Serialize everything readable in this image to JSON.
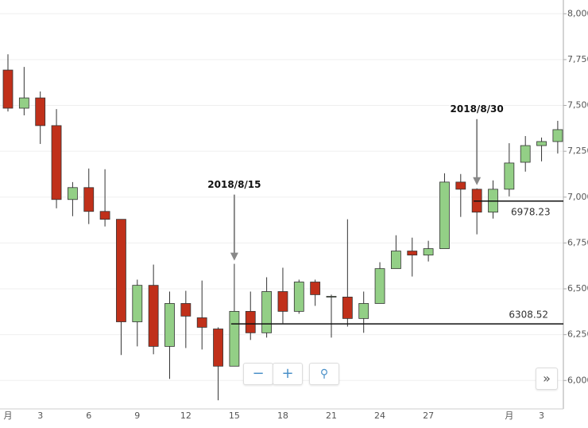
{
  "chart_data": {
    "type": "candlestick",
    "categories": [
      "月",
      null,
      "3",
      null,
      null,
      "6",
      null,
      null,
      "9",
      null,
      null,
      "12",
      null,
      null,
      "15",
      null,
      null,
      "18",
      null,
      null,
      "21",
      null,
      null,
      "24",
      null,
      null,
      "27",
      null,
      null,
      null,
      null,
      "月",
      null,
      "3",
      null
    ],
    "open": [
      7693,
      7485,
      7541,
      7390,
      6987,
      7052,
      6922,
      6879,
      6320,
      6519,
      6186,
      6420,
      6342,
      6281,
      6078,
      6377,
      6260,
      6485,
      6377,
      6537,
      6455,
      6455,
      6338,
      6420,
      6610,
      6706,
      6684,
      6719,
      7082,
      7043,
      6918,
      7043,
      7190,
      7281,
      7303
    ],
    "high": [
      7779,
      7710,
      7576,
      7480,
      7082,
      7156,
      7152,
      6879,
      6550,
      6632,
      6485,
      6489,
      6545,
      6290,
      6636,
      6485,
      6563,
      6615,
      6550,
      6550,
      6468,
      6879,
      6485,
      6645,
      6792,
      6779,
      6762,
      7130,
      7126,
      7048,
      7091,
      7294,
      7333,
      7325,
      7416
    ],
    "low": [
      7467,
      7446,
      7290,
      6939,
      6896,
      6853,
      6840,
      6139,
      6186,
      6143,
      6009,
      6177,
      6169,
      5892,
      6078,
      6221,
      6234,
      6312,
      6364,
      6407,
      6234,
      6294,
      6260,
      6420,
      6610,
      6567,
      6649,
      6719,
      6892,
      6797,
      6883,
      7004,
      7139,
      7195,
      7238
    ],
    "close": [
      7485,
      7541,
      7390,
      6987,
      7052,
      6922,
      6879,
      6320,
      6519,
      6186,
      6420,
      6351,
      6290,
      6078,
      6377,
      6260,
      6485,
      6377,
      6537,
      6468,
      6459,
      6338,
      6420,
      6610,
      6706,
      6684,
      6719,
      7082,
      7043,
      6918,
      7043,
      7186,
      7281,
      7303,
      7368
    ],
    "up_color": "#93cf86",
    "down_color": "#c0301a",
    "ylim": [
      5845,
      8075
    ],
    "yticks": [
      {
        "value": 6000,
        "label": "6,000"
      },
      {
        "value": 6250,
        "label": "6,250"
      },
      {
        "value": 6500,
        "label": "6,500"
      },
      {
        "value": 6750,
        "label": "6,750"
      },
      {
        "value": 7000,
        "label": "7,000"
      },
      {
        "value": 7250,
        "label": "7,250"
      },
      {
        "value": 7500,
        "label": "7,500"
      },
      {
        "value": 7750,
        "label": "7,750"
      },
      {
        "value": 8000,
        "label": "8,000"
      }
    ],
    "grid": true,
    "annotations": [
      "2018/8/15",
      "2018/8/30"
    ],
    "price_lines": [
      6978.23,
      6308.52
    ]
  }
}
